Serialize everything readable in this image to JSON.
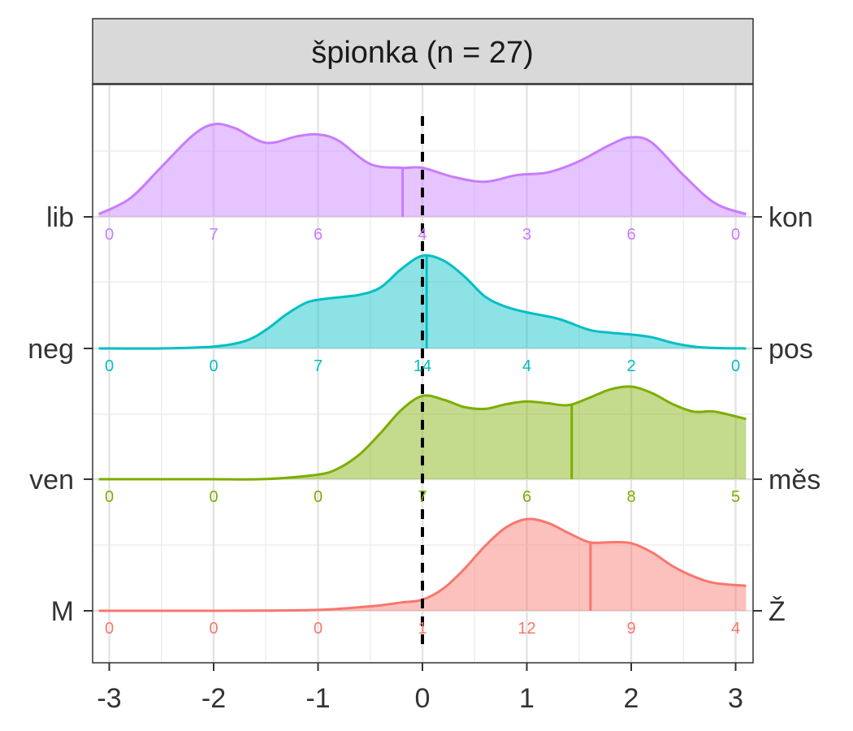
{
  "chart_data": {
    "type": "ridgeline",
    "title": "špionka (n = 27)",
    "xlabel": "",
    "ylabel": "",
    "xlim": [
      -3.12,
      3.12
    ],
    "x_ticks": [
      "-3",
      "-2",
      "-1",
      "0",
      "1",
      "2",
      "3"
    ],
    "x_tick_values": [
      -3,
      -2,
      -1,
      0,
      1,
      2,
      3
    ],
    "reference_line": 0,
    "grid": true,
    "series": [
      {
        "left_label": "M",
        "right_label": "Ž",
        "color": "#F8766D",
        "counts": [
          0,
          0,
          0,
          1,
          12,
          9,
          4
        ],
        "count_labels": [
          "0",
          "0",
          "0",
          "1",
          "12",
          "9",
          "4"
        ],
        "mean": 1.61,
        "density_x": [
          -3.1,
          -2.5,
          -2,
          -1.5,
          -1,
          -0.7,
          -0.4,
          -0.2,
          0,
          0.2,
          0.4,
          0.6,
          0.8,
          1.0,
          1.2,
          1.4,
          1.6,
          1.8,
          2.0,
          2.2,
          2.4,
          2.6,
          2.8,
          3.1
        ],
        "density_y": [
          0,
          0,
          0,
          0.002,
          0.01,
          0.03,
          0.06,
          0.09,
          0.12,
          0.24,
          0.45,
          0.7,
          0.9,
          0.99,
          0.95,
          0.84,
          0.74,
          0.74,
          0.73,
          0.63,
          0.48,
          0.37,
          0.3,
          0.27
        ]
      },
      {
        "left_label": "ven",
        "right_label": "měs",
        "color": "#7CAE00",
        "counts": [
          0,
          0,
          0,
          7,
          6,
          8,
          5
        ],
        "count_labels": [
          "0",
          "0",
          "0",
          "7",
          "6",
          "8",
          "5"
        ],
        "mean": 1.43,
        "density_x": [
          -3.1,
          -2.5,
          -2,
          -1.5,
          -1,
          -0.8,
          -0.6,
          -0.4,
          -0.2,
          0,
          0.2,
          0.4,
          0.6,
          0.8,
          1.0,
          1.2,
          1.4,
          1.6,
          1.8,
          2.0,
          2.2,
          2.4,
          2.6,
          2.8,
          3.1
        ],
        "density_y": [
          0,
          0,
          0,
          0.002,
          0.05,
          0.12,
          0.27,
          0.5,
          0.75,
          0.9,
          0.86,
          0.78,
          0.76,
          0.81,
          0.84,
          0.82,
          0.8,
          0.88,
          0.97,
          1.0,
          0.93,
          0.81,
          0.73,
          0.73,
          0.65
        ]
      },
      {
        "left_label": "neg",
        "right_label": "pos",
        "color": "#00BFC4",
        "counts": [
          0,
          0,
          7,
          14,
          4,
          2,
          0
        ],
        "count_labels": [
          "0",
          "0",
          "7",
          "14",
          "4",
          "2",
          "0"
        ],
        "mean": 0.04,
        "density_x": [
          -3.1,
          -2.5,
          -2,
          -1.7,
          -1.5,
          -1.3,
          -1.1,
          -0.9,
          -0.6,
          -0.4,
          -0.2,
          0,
          0.2,
          0.4,
          0.6,
          0.8,
          1.0,
          1.3,
          1.6,
          1.8,
          2.0,
          2.2,
          2.4,
          2.6,
          2.8,
          3.1
        ],
        "density_y": [
          0,
          0,
          0.02,
          0.08,
          0.2,
          0.37,
          0.5,
          0.54,
          0.58,
          0.66,
          0.86,
          1.0,
          0.95,
          0.78,
          0.56,
          0.45,
          0.39,
          0.32,
          0.2,
          0.17,
          0.15,
          0.12,
          0.06,
          0.02,
          0.005,
          0
        ]
      },
      {
        "left_label": "lib",
        "right_label": "kon",
        "color": "#C77CFF",
        "counts": [
          0,
          7,
          6,
          4,
          3,
          6,
          0
        ],
        "count_labels": [
          "0",
          "7",
          "6",
          "4",
          "3",
          "6",
          "0"
        ],
        "mean": -0.19,
        "density_x": [
          -3.1,
          -2.8,
          -2.5,
          -2.2,
          -2.0,
          -1.8,
          -1.5,
          -1.2,
          -1.0,
          -0.8,
          -0.5,
          -0.2,
          0,
          0.3,
          0.6,
          0.9,
          1.2,
          1.5,
          1.8,
          2.0,
          2.2,
          2.5,
          2.8,
          3.1
        ],
        "density_y": [
          0.03,
          0.2,
          0.54,
          0.88,
          1.0,
          0.96,
          0.8,
          0.87,
          0.89,
          0.82,
          0.57,
          0.53,
          0.53,
          0.43,
          0.38,
          0.45,
          0.48,
          0.6,
          0.78,
          0.86,
          0.8,
          0.45,
          0.15,
          0.03
        ]
      }
    ]
  }
}
